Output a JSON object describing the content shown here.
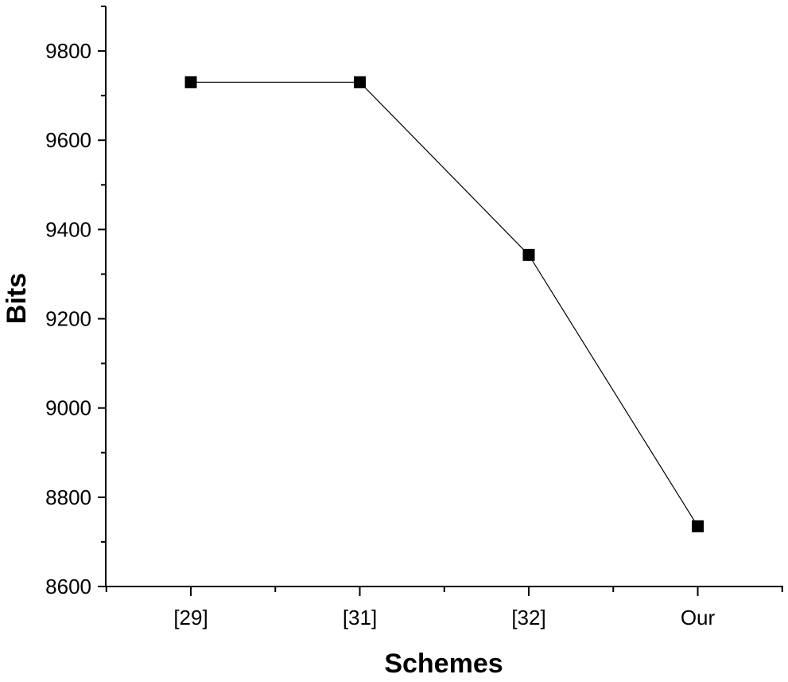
{
  "chart_data": {
    "type": "line",
    "title": "",
    "xlabel": "Schemes",
    "ylabel": "Bits",
    "categories": [
      "[29]",
      "[31]",
      "[32]",
      "Our"
    ],
    "series": [
      {
        "values": [
          9730,
          9730,
          9343,
          8735
        ]
      }
    ],
    "ylim": [
      8600,
      9900
    ],
    "yticks": [
      8600,
      8800,
      9000,
      9200,
      9400,
      9600,
      9800
    ],
    "yminor_step": 100,
    "grid": false,
    "marker": "square",
    "colors": {
      "line": "#000000",
      "marker": "#000000",
      "axis": "#000000"
    }
  }
}
